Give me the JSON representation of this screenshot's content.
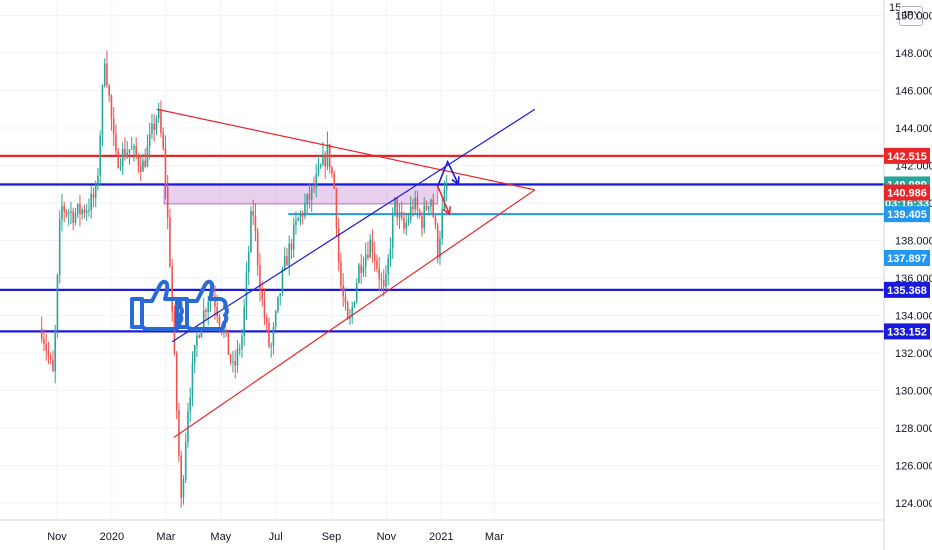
{
  "chart_data": {
    "type": "candlestick",
    "instrument_currency": "JPY",
    "x_ticks": [
      "Nov",
      "2020",
      "Mar",
      "May",
      "Jul",
      "Sep",
      "Nov",
      "2021",
      "Mar"
    ],
    "y_ticks": [
      "124.000",
      "126.000",
      "128.000",
      "130.000",
      "132.000",
      "134.000",
      "136.000",
      "138.000",
      "140.000",
      "142.000",
      "144.000",
      "146.000",
      "148.000",
      "150.000"
    ],
    "ylim": [
      123.2,
      150.5
    ],
    "top_label_fragment": "15",
    "price_path": [
      [
        "2019-10-15",
        133.3
      ],
      [
        "2019-10-28",
        130.7
      ],
      [
        "2019-11-05",
        139.8
      ],
      [
        "2019-11-20",
        139.4
      ],
      [
        "2019-12-05",
        139.8
      ],
      [
        "2019-12-15",
        140.5
      ],
      [
        "2019-12-24",
        147.9
      ],
      [
        "2020-01-05",
        142.3
      ],
      [
        "2020-01-20",
        142.9
      ],
      [
        "2020-02-05",
        142.0
      ],
      [
        "2020-02-21",
        144.9
      ],
      [
        "2020-02-28",
        142.3
      ],
      [
        "2020-03-05",
        137.5
      ],
      [
        "2020-03-10",
        132.0
      ],
      [
        "2020-03-18",
        124.0
      ],
      [
        "2020-03-25",
        129.0
      ],
      [
        "2020-04-05",
        133.0
      ],
      [
        "2020-04-20",
        135.5
      ],
      [
        "2020-05-05",
        133.0
      ],
      [
        "2020-05-15",
        131.0
      ],
      [
        "2020-05-25",
        133.0
      ],
      [
        "2020-06-05",
        140.0
      ],
      [
        "2020-06-15",
        135.0
      ],
      [
        "2020-06-25",
        132.0
      ],
      [
        "2020-07-10",
        136.5
      ],
      [
        "2020-07-25",
        139.0
      ],
      [
        "2020-08-10",
        140.5
      ],
      [
        "2020-08-28",
        142.8
      ],
      [
        "2020-09-05",
        140.5
      ],
      [
        "2020-09-10",
        136.0
      ],
      [
        "2020-09-20",
        133.2
      ],
      [
        "2020-10-01",
        136.5
      ],
      [
        "2020-10-15",
        138.0
      ],
      [
        "2020-10-30",
        135.0
      ],
      [
        "2020-11-10",
        140.0
      ],
      [
        "2020-11-20",
        138.5
      ],
      [
        "2020-12-01",
        140.0
      ],
      [
        "2020-12-10",
        139.0
      ],
      [
        "2020-12-20",
        140.5
      ],
      [
        "2020-12-28",
        137.5
      ],
      [
        "2021-01-05",
        140.5
      ],
      [
        "2021-01-08",
        141.0
      ]
    ],
    "horizontal_levels": [
      {
        "value": 142.515,
        "color": "#e8262a"
      },
      {
        "value": 140.989,
        "color": "#e8262a"
      },
      {
        "value": 140.986,
        "color": "#1a1adb"
      },
      {
        "value": 139.405,
        "color": "#2196f3"
      },
      {
        "value": 135.368,
        "color": "#1a1adb"
      },
      {
        "value": 133.152,
        "color": "#1a1adb"
      }
    ],
    "price_tags": [
      {
        "text": "142.515",
        "color": "#e8262a"
      },
      {
        "text": "140.989",
        "color": "#26a69a"
      },
      {
        "text": "03:16:33",
        "color": "#26a69a"
      },
      {
        "text": "140.986",
        "color": "#e8262a"
      },
      {
        "text": "139.405",
        "color": "#2196f3"
      },
      {
        "text": "137.897",
        "color": "#2196f3"
      },
      {
        "text": "135.368",
        "color": "#1a1adb"
      },
      {
        "text": "133.152",
        "color": "#1a1adb"
      }
    ],
    "trendlines": [
      {
        "color": "#e8262a",
        "from": [
          "2020-02-20",
          145.0
        ],
        "to": [
          "2021-04-15",
          140.7
        ]
      },
      {
        "color": "#e8262a",
        "from": [
          "2020-03-10",
          127.5
        ],
        "to": [
          "2021-04-15",
          140.7
        ]
      },
      {
        "color": "#1a1adb",
        "from": [
          "2020-03-08",
          132.6
        ],
        "to": [
          "2021-04-15",
          145.0
        ]
      }
    ],
    "zone": {
      "from": "2020-02-28",
      "to": "2020-12-28",
      "top": 141.0,
      "bottom": 139.95,
      "color": "#9c27b0"
    },
    "annotations": [
      {
        "kind": "arrow",
        "color": "#1a1adb",
        "points": [
          [
            "2020-12-28",
            140.9
          ],
          [
            "2021-01-08",
            142.2
          ],
          [
            "2021-01-20",
            141.0
          ]
        ]
      },
      {
        "kind": "arrow",
        "color": "#e8262a",
        "points": [
          [
            "2020-12-28",
            140.9
          ],
          [
            "2021-01-10",
            139.4
          ]
        ]
      },
      {
        "kind": "icon",
        "name": "thumbs-up-icon",
        "count": 2,
        "color": "#2a6ad8"
      }
    ],
    "colors": {
      "up": "#26a69a",
      "down": "#ef5350",
      "grid": "#f0f3fa"
    }
  }
}
